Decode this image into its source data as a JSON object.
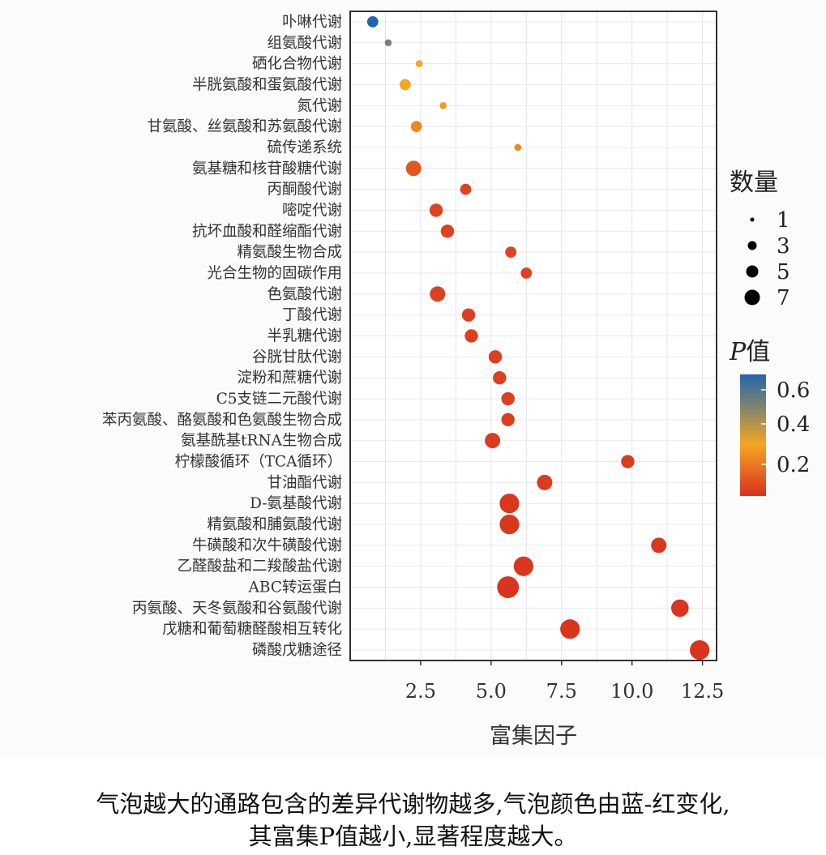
{
  "chart_data": {
    "type": "scatter",
    "xlabel": "富集因子",
    "xlim": [
      0,
      13
    ],
    "x_ticks": [
      "2.5",
      "5.0",
      "7.5",
      "10.0",
      "12.5"
    ],
    "grid": true,
    "legend_position": "right",
    "size_legend": {
      "title": "数量",
      "entries": [
        "1",
        "3",
        "5",
        "7"
      ]
    },
    "color_legend": {
      "title": "P值",
      "ticks": [
        "0.6",
        "0.4",
        "0.2"
      ],
      "color_low": "#d7301f",
      "color_mid": "#f5a623",
      "color_high": "#2166ac"
    },
    "points": [
      {
        "pathway": "卟啉代谢",
        "x": 0.8,
        "count": 3,
        "p": 0.65
      },
      {
        "pathway": "组氨酸代谢",
        "x": 1.35,
        "count": 1,
        "p": 0.5
      },
      {
        "pathway": "硒化合物代谢",
        "x": 2.45,
        "count": 1,
        "p": 0.3
      },
      {
        "pathway": "半胱氨酸和蛋氨酸代谢",
        "x": 1.95,
        "count": 3,
        "p": 0.3
      },
      {
        "pathway": "氮代谢",
        "x": 3.3,
        "count": 1,
        "p": 0.28
      },
      {
        "pathway": "甘氨酸、丝氨酸和苏氨酸代谢",
        "x": 2.35,
        "count": 3,
        "p": 0.22
      },
      {
        "pathway": "硫传递系统",
        "x": 5.95,
        "count": 1,
        "p": 0.22
      },
      {
        "pathway": "氨基糖和核苷酸糖代谢",
        "x": 2.25,
        "count": 5,
        "p": 0.1
      },
      {
        "pathway": "丙酮酸代谢",
        "x": 4.1,
        "count": 3,
        "p": 0.05
      },
      {
        "pathway": "嘧啶代谢",
        "x": 3.05,
        "count": 4,
        "p": 0.05
      },
      {
        "pathway": "抗坏血酸和醛缩酯代谢",
        "x": 3.45,
        "count": 4,
        "p": 0.05
      },
      {
        "pathway": "精氨酸生物合成",
        "x": 5.7,
        "count": 3,
        "p": 0.05
      },
      {
        "pathway": "光合生物的固碳作用",
        "x": 6.25,
        "count": 3,
        "p": 0.05
      },
      {
        "pathway": "色氨酸代谢",
        "x": 3.1,
        "count": 5,
        "p": 0.04
      },
      {
        "pathway": "丁酸代谢",
        "x": 4.2,
        "count": 4,
        "p": 0.04
      },
      {
        "pathway": "半乳糖代谢",
        "x": 4.3,
        "count": 4,
        "p": 0.04
      },
      {
        "pathway": "谷胱甘肽代谢",
        "x": 5.15,
        "count": 4,
        "p": 0.04
      },
      {
        "pathway": "淀粉和蔗糖代谢",
        "x": 5.3,
        "count": 4,
        "p": 0.04
      },
      {
        "pathway": "C5支链二元酸代谢",
        "x": 5.6,
        "count": 4,
        "p": 0.04
      },
      {
        "pathway": "苯丙氨酸、酪氨酸和色氨酸生物合成",
        "x": 5.6,
        "count": 4,
        "p": 0.04
      },
      {
        "pathway": "氨基酰基tRNA生物合成",
        "x": 5.05,
        "count": 5,
        "p": 0.03
      },
      {
        "pathway": "柠檬酸循环（TCA循环）",
        "x": 9.85,
        "count": 4,
        "p": 0.03
      },
      {
        "pathway": "甘油酯代谢",
        "x": 6.9,
        "count": 5,
        "p": 0.03
      },
      {
        "pathway": "D-氨基酸代谢",
        "x": 5.65,
        "count": 7,
        "p": 0.02
      },
      {
        "pathway": "精氨酸和脯氨酸代谢",
        "x": 5.65,
        "count": 7,
        "p": 0.02
      },
      {
        "pathway": "牛磺酸和次牛磺酸代谢",
        "x": 10.95,
        "count": 5,
        "p": 0.02
      },
      {
        "pathway": "乙醛酸盐和二羧酸盐代谢",
        "x": 6.15,
        "count": 7,
        "p": 0.02
      },
      {
        "pathway": "ABC转运蛋白",
        "x": 5.6,
        "count": 8,
        "p": 0.01
      },
      {
        "pathway": "丙氨酸、天冬氨酸和谷氨酸代谢",
        "x": 11.7,
        "count": 6,
        "p": 0.01
      },
      {
        "pathway": "戊糖和葡萄糖醛酸相互转化",
        "x": 7.8,
        "count": 7,
        "p": 0.01
      },
      {
        "pathway": "磷酸戊糖途径",
        "x": 12.4,
        "count": 7,
        "p": 0.01
      }
    ]
  },
  "caption": {
    "line1": "气泡越大的通路包含的差异代谢物越多,气泡颜色由蓝-红变化,",
    "line2": "其富集P值越小,显著程度越大。"
  }
}
